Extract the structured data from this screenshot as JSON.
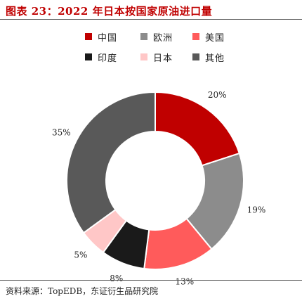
{
  "figure": {
    "title": "图表 23：2022 年日本按国家原油进口量",
    "source": "资料来源：TopEDB，东证衍生品研究院"
  },
  "colors": {
    "title": "#c00000"
  },
  "chart_data": {
    "type": "pie",
    "variant": "donut",
    "categories": [
      "中国",
      "欧洲",
      "美国",
      "印度",
      "日本",
      "其他"
    ],
    "values": [
      20,
      19,
      13,
      8,
      5,
      35
    ],
    "labels": [
      "20%",
      "19%",
      "13%",
      "8%",
      "5%",
      "35%"
    ],
    "unit": "%",
    "colors": [
      "#c00000",
      "#8c8c8c",
      "#ff5b5b",
      "#1a1a1a",
      "#ffc7c7",
      "#595959"
    ],
    "start_angle_deg": 0,
    "direction": "clockwise",
    "legend_position": "top"
  }
}
